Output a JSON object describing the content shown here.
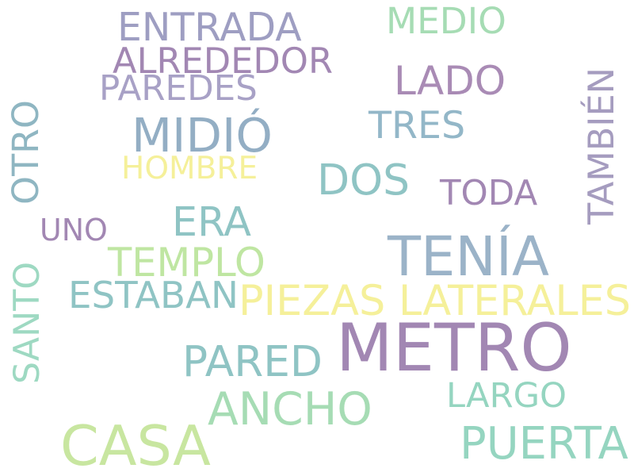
{
  "words": [
    {
      "id": "metro",
      "text": "METRO",
      "color": "#a287b3"
    },
    {
      "id": "casa",
      "text": "CASA",
      "color": "#c8e6a0"
    },
    {
      "id": "tenia",
      "text": "TENÍA",
      "color": "#9bb3c8"
    },
    {
      "id": "ancho",
      "text": "ANCHO",
      "color": "#a6dcb4"
    },
    {
      "id": "piezas-laterales",
      "text": "PIEZAS LATERALES",
      "color": "#f5f09a"
    },
    {
      "id": "dos",
      "text": "DOS",
      "color": "#8fc4c4"
    },
    {
      "id": "pared",
      "text": "PARED",
      "color": "#8fc4c4"
    },
    {
      "id": "puerta",
      "text": "PUERTA",
      "color": "#95d5c0"
    },
    {
      "id": "midio",
      "text": "MIDIÓ",
      "color": "#93aec4"
    },
    {
      "id": "lado",
      "text": "LADO",
      "color": "#a98bb5"
    },
    {
      "id": "entrada",
      "text": "ENTRADA",
      "color": "#9e9ec2"
    },
    {
      "id": "largo",
      "text": "LARGO",
      "color": "#95d5c0"
    },
    {
      "id": "templo",
      "text": "TEMPLO",
      "color": "#bfe6a2"
    },
    {
      "id": "estaban",
      "text": "ESTABAN",
      "color": "#8fc4c4"
    },
    {
      "id": "alrededor",
      "text": "ALREDEDOR",
      "color": "#a287b3"
    },
    {
      "id": "era",
      "text": "ERA",
      "color": "#8fc4c4"
    },
    {
      "id": "medio",
      "text": "MEDIO",
      "color": "#a6dcb4"
    },
    {
      "id": "tres",
      "text": "TRES",
      "color": "#93b7c8"
    },
    {
      "id": "toda",
      "text": "TODA",
      "color": "#a287b3"
    },
    {
      "id": "paredes",
      "text": "PAREDES",
      "color": "#a8a1c6"
    },
    {
      "id": "hombre",
      "text": "HOMBRE",
      "color": "#f5f09a"
    },
    {
      "id": "uno",
      "text": "UNO",
      "color": "#a287b3"
    },
    {
      "id": "otro",
      "text": "OTRO",
      "color": "#8fb6c2"
    },
    {
      "id": "santo",
      "text": "SANTO",
      "color": "#9ed9c2"
    },
    {
      "id": "tambien",
      "text": "TAMBIÉN",
      "color": "#a59cbf"
    }
  ]
}
